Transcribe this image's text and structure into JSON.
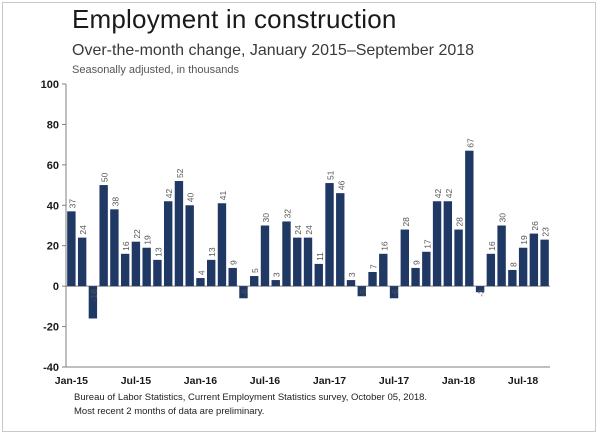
{
  "header": {
    "title": "Employment in construction",
    "subtitle": "Over-the-month change, January 2015–September 2018",
    "note": "Seasonally adjusted, in thousands"
  },
  "footer": {
    "source": "Bureau of Labor Statistics, Current Employment Statistics survey, October 05, 2018.",
    "preliminary_note": "Most recent 2 months of data are preliminary."
  },
  "colors": {
    "bar": "#1f3864",
    "axis": "#7f7f7f",
    "grid": "#d0d0d0"
  },
  "chart_data": {
    "type": "bar",
    "title": "Employment in construction",
    "subtitle": "Over-the-month change, January 2015–September 2018",
    "ylim": [
      -40,
      100
    ],
    "y_ticks": [
      "100",
      "80",
      "60",
      "40",
      "20",
      "0",
      "-20",
      "-40"
    ],
    "x_tick_labels": [
      "Jan-15",
      "Jul-15",
      "Jan-16",
      "Jul-16",
      "Jan-17",
      "Jul-17",
      "Jan-18",
      "Jul-18"
    ],
    "categories": [
      "Jan-15",
      "Feb-15",
      "Mar-15",
      "Apr-15",
      "May-15",
      "Jun-15",
      "Jul-15",
      "Aug-15",
      "Sep-15",
      "Oct-15",
      "Nov-15",
      "Dec-15",
      "Jan-16",
      "Feb-16",
      "Mar-16",
      "Apr-16",
      "May-16",
      "Jun-16",
      "Jul-16",
      "Aug-16",
      "Sep-16",
      "Oct-16",
      "Nov-16",
      "Dec-16",
      "Jan-17",
      "Feb-17",
      "Mar-17",
      "Apr-17",
      "May-17",
      "Jun-17",
      "Jul-17",
      "Aug-17",
      "Sep-17",
      "Oct-17",
      "Nov-17",
      "Dec-17",
      "Jan-18",
      "Feb-18",
      "Mar-18",
      "Apr-18",
      "May-18",
      "Jun-18",
      "Jul-18",
      "Aug-18",
      "Sep-18"
    ],
    "values": [
      37,
      24,
      -16,
      50,
      38,
      16,
      22,
      19,
      13,
      42,
      52,
      40,
      4,
      13,
      41,
      9,
      -6,
      5,
      30,
      3,
      32,
      24,
      24,
      11,
      51,
      46,
      3,
      -5,
      7,
      16,
      -6,
      28,
      9,
      17,
      42,
      42,
      28,
      67,
      -3,
      16,
      30,
      8,
      19,
      26,
      23
    ],
    "grid": false,
    "legend": "none"
  }
}
